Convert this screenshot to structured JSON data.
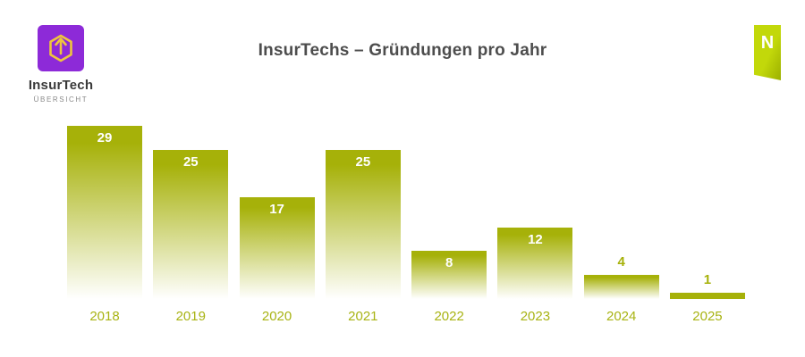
{
  "header": {
    "logo": {
      "title": "InsurTech",
      "subtitle": "ÜBERSICHT"
    },
    "badge_letter": "N"
  },
  "colors": {
    "bar_olive": "#a6b109",
    "bar_fade_to": "#ffffff",
    "value_label_inside": "#ffffff",
    "value_label_outside": "#a6b109",
    "axis_label": "#a8b313",
    "title_text": "#4d4d4d",
    "logo_purple": "#8d2ad8",
    "logo_gold": "#eec63d",
    "ribbon_green": "#bcd203"
  },
  "chart_data": {
    "type": "bar",
    "title": "InsurTechs – Gründungen pro Jahr",
    "categories": [
      "2018",
      "2019",
      "2020",
      "2021",
      "2022",
      "2023",
      "2024",
      "2025"
    ],
    "values": [
      29,
      25,
      17,
      25,
      8,
      12,
      4,
      1
    ],
    "xlabel": "",
    "ylabel": "",
    "ylim": [
      0,
      30
    ],
    "grid": false,
    "legend": null,
    "bar_style": "vertical gradient, solid olive at top fading to white at baseline",
    "value_label_placement": "white inside top of bar for values >= 8, olive above bar for values 4 and 1"
  }
}
